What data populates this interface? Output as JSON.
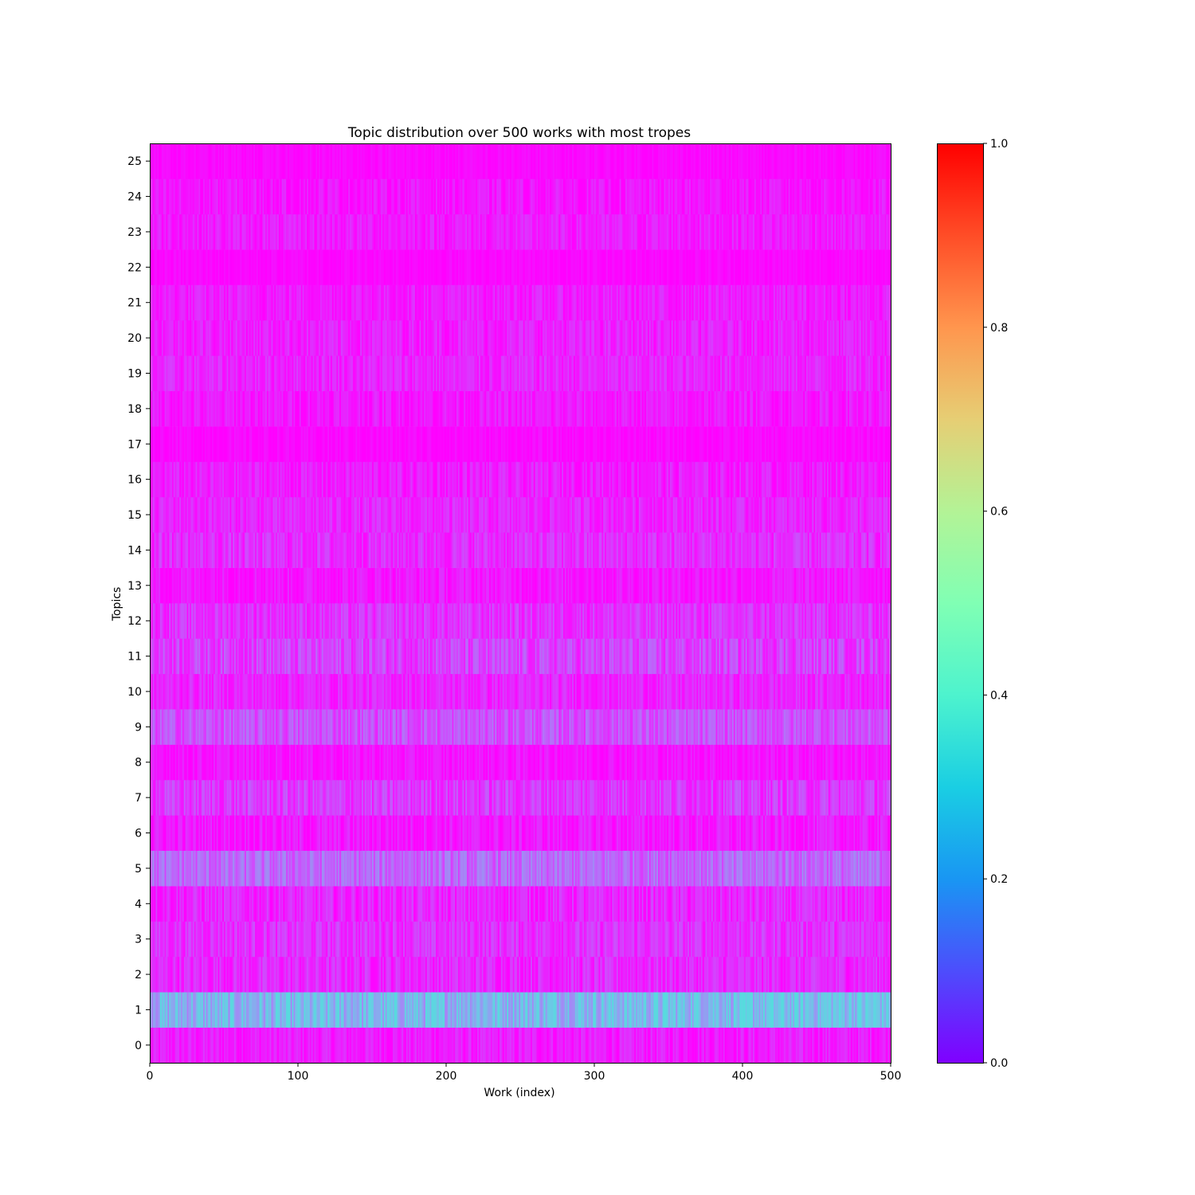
{
  "chart_data": {
    "type": "heatmap",
    "title": "Topic distribution over 500 works with most tropes",
    "xlabel": "Work (index)",
    "ylabel": "Topics",
    "xlim": [
      0,
      500
    ],
    "x_ticks": [
      "0",
      "100",
      "200",
      "300",
      "400",
      "500"
    ],
    "x_tick_values": [
      0,
      100,
      200,
      300,
      400,
      500
    ],
    "y_ticks": [
      "0",
      "1",
      "2",
      "3",
      "4",
      "5",
      "6",
      "7",
      "8",
      "9",
      "10",
      "11",
      "12",
      "13",
      "14",
      "15",
      "16",
      "17",
      "18",
      "19",
      "20",
      "21",
      "22",
      "23",
      "24",
      "25"
    ],
    "n_works": 500,
    "colormap": "rainbow",
    "colorbar": {
      "range": [
        0.0,
        1.0
      ],
      "ticks": [
        "0.0",
        "0.2",
        "0.4",
        "0.6",
        "0.8",
        "1.0"
      ],
      "tick_values": [
        0.0,
        0.2,
        0.4,
        0.6,
        0.8,
        1.0
      ]
    },
    "approx_mean_weight_by_topic": [
      0.035,
      0.24,
      0.05,
      0.06,
      0.045,
      0.13,
      0.03,
      0.07,
      0.025,
      0.1,
      0.045,
      0.08,
      0.06,
      0.03,
      0.055,
      0.045,
      0.035,
      0.01,
      0.03,
      0.045,
      0.04,
      0.035,
      0.01,
      0.035,
      0.025,
      0.01
    ],
    "approx_range_by_topic": [
      [
        0.0,
        0.1
      ],
      [
        0.12,
        0.33
      ],
      [
        0.0,
        0.12
      ],
      [
        0.0,
        0.12
      ],
      [
        0.0,
        0.12
      ],
      [
        0.05,
        0.2
      ],
      [
        0.0,
        0.1
      ],
      [
        0.0,
        0.14
      ],
      [
        0.0,
        0.08
      ],
      [
        0.02,
        0.16
      ],
      [
        0.0,
        0.1
      ],
      [
        0.0,
        0.15
      ],
      [
        0.0,
        0.12
      ],
      [
        0.0,
        0.09
      ],
      [
        0.0,
        0.12
      ],
      [
        0.0,
        0.1
      ],
      [
        0.0,
        0.1
      ],
      [
        0.0,
        0.05
      ],
      [
        0.0,
        0.09
      ],
      [
        0.0,
        0.1
      ],
      [
        0.0,
        0.1
      ],
      [
        0.0,
        0.09
      ],
      [
        0.0,
        0.04
      ],
      [
        0.0,
        0.09
      ],
      [
        0.0,
        0.09
      ],
      [
        0.0,
        0.04
      ]
    ],
    "grid": false,
    "legend": "colorbar on right"
  }
}
